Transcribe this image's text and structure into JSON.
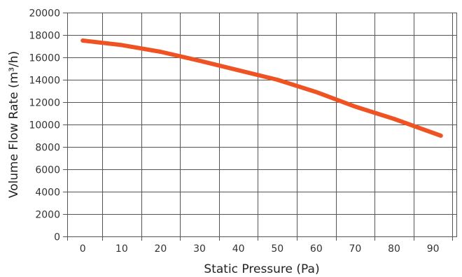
{
  "chart_data": {
    "type": "line",
    "title": "",
    "xlabel": "Static Pressure (Pa)",
    "ylabel": "Volume Flow Rate (m³/h)",
    "xlim": [
      -4,
      96
    ],
    "ylim": [
      0,
      20000
    ],
    "x_ticks": [
      0,
      10,
      20,
      30,
      40,
      50,
      60,
      70,
      80,
      90
    ],
    "y_ticks": [
      0,
      2000,
      4000,
      6000,
      8000,
      10000,
      12000,
      14000,
      16000,
      18000,
      20000
    ],
    "grid": true,
    "colors": {
      "line": "#f05323",
      "grid": "#555555"
    },
    "series": [
      {
        "values": [
          {
            "x": 0,
            "y": 17500
          },
          {
            "x": 10,
            "y": 17100
          },
          {
            "x": 20,
            "y": 16500
          },
          {
            "x": 30,
            "y": 15700
          },
          {
            "x": 40,
            "y": 14850
          },
          {
            "x": 50,
            "y": 14000
          },
          {
            "x": 60,
            "y": 12900
          },
          {
            "x": 70,
            "y": 11600
          },
          {
            "x": 80,
            "y": 10500
          },
          {
            "x": 92,
            "y": 9000
          }
        ]
      }
    ]
  }
}
